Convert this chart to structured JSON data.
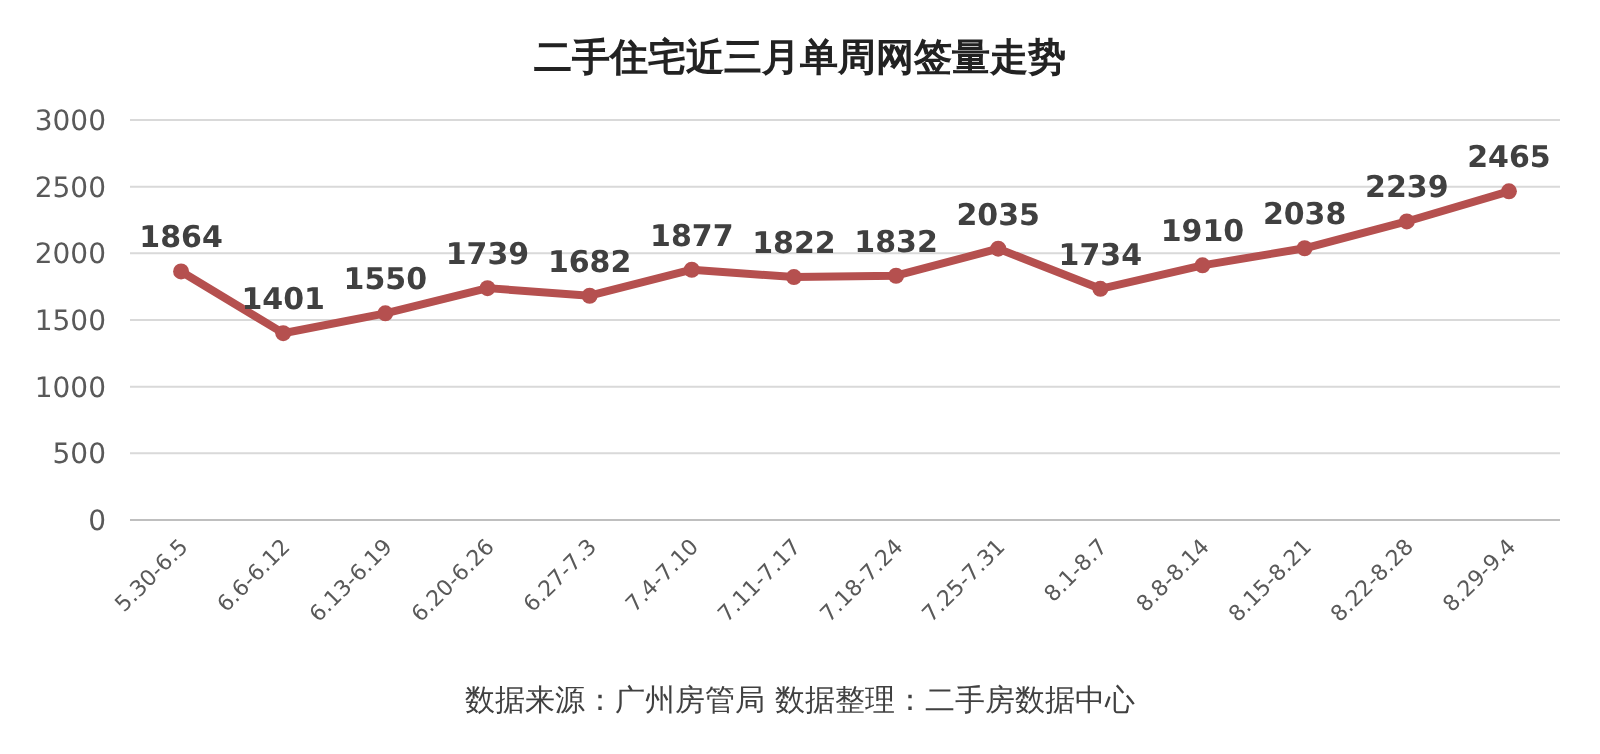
{
  "chart_data": {
    "type": "line",
    "title": "二手住宅近三月单周网签量走势",
    "categories": [
      "5.30-6.5",
      "6.6-6.12",
      "6.13-6.19",
      "6.20-6.26",
      "6.27-7.3",
      "7.4-7.10",
      "7.11-7.17",
      "7.18-7.24",
      "7.25-7.31",
      "8.1-8.7",
      "8.8-8.14",
      "8.15-8.21",
      "8.22-8.28",
      "8.29-9.4"
    ],
    "series": [
      {
        "color": "#b5504f",
        "values": [
          1864,
          1401,
          1550,
          1739,
          1682,
          1877,
          1822,
          1832,
          2035,
          1734,
          1910,
          2038,
          2239,
          2465
        ]
      }
    ],
    "ylim": [
      0,
      3000
    ],
    "yticks": [
      0,
      500,
      1000,
      1500,
      2000,
      2500,
      3000
    ],
    "grid": "y",
    "marker": "circle",
    "line_style": "solid",
    "data_labels": true,
    "annotations": [
      "数据来源：广州房管局  数据整理：二手房数据中心"
    ]
  }
}
